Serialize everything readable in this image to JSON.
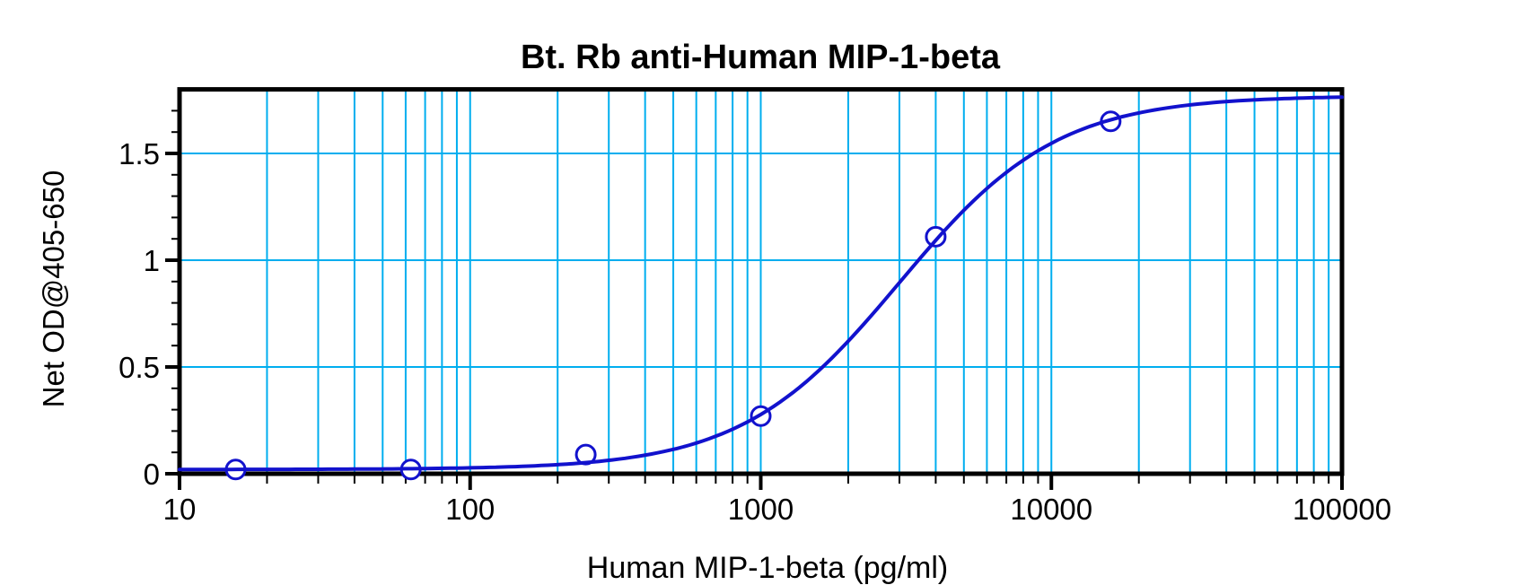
{
  "chart_data": {
    "type": "scatter",
    "subtype": "sigmoid-standard-curve-with-4pl-fit",
    "title": "Bt. Rb anti-Human MIP-1-beta",
    "xlabel": "Human MIP-1-beta (pg/ml)",
    "ylabel": "Net OD@405-650",
    "x_scale": "log10",
    "xlim": [
      10,
      100000
    ],
    "ylim": [
      0,
      1.8
    ],
    "x_major_ticks": [
      10,
      100,
      1000,
      10000,
      100000
    ],
    "x_major_tick_labels": [
      "10",
      "100",
      "1000",
      "10000",
      "100000"
    ],
    "y_major_ticks": [
      0,
      0.5,
      1,
      1.5
    ],
    "y_major_tick_labels": [
      "0",
      "0.5",
      "1",
      "1.5"
    ],
    "y_minor_tick_step": 0.1,
    "grid": {
      "vertical": "cyan gridline at every log minor and decade position",
      "horizontal_at": [
        0.5,
        1.0,
        1.5
      ],
      "on": true
    },
    "legend": "none",
    "marker": "open-circle",
    "points": [
      {
        "x": 15.6,
        "y": 0.02
      },
      {
        "x": 62.5,
        "y": 0.02
      },
      {
        "x": 250,
        "y": 0.09
      },
      {
        "x": 1000,
        "y": 0.27
      },
      {
        "x": 4000,
        "y": 1.11
      },
      {
        "x": 16000,
        "y": 1.65
      }
    ],
    "fit_curve_4pl": {
      "bottom": 0.02,
      "top": 1.77,
      "ec50": 3000,
      "hill": 1.6
    },
    "colors": {
      "curve": "#1212CD",
      "marker_stroke": "#1212CD",
      "marker_fill": "#FFFFFF",
      "grid": "#00AEEF",
      "axis": "#000000",
      "text": "#000000",
      "background": "#FFFFFF"
    }
  }
}
